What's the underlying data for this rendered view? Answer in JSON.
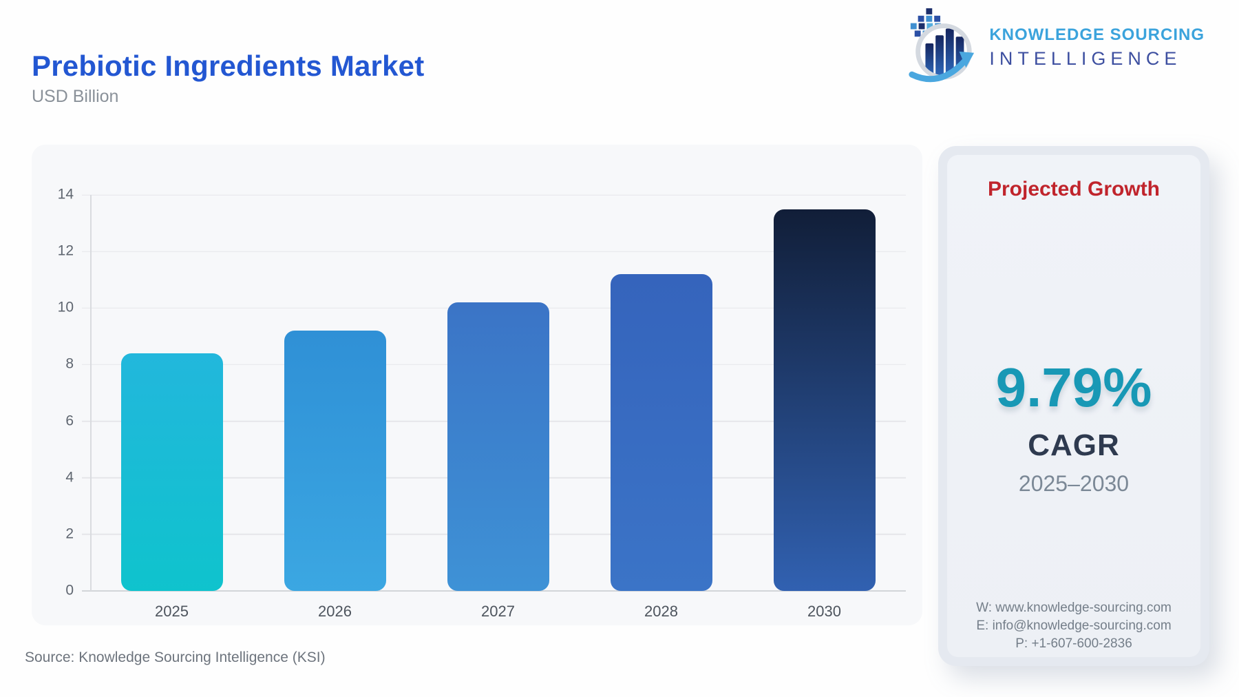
{
  "header": {
    "title": "Prebiotic Ingredients Market",
    "subtitle": "USD Billion",
    "logo": {
      "line1": "KNOWLEDGE SOURCING",
      "line2": "INTELLIGENCE"
    }
  },
  "colors": {
    "title-blue": "#2357D2",
    "accent-red": "#C0242C",
    "accent-teal": "#1898B5",
    "dark-navy": "#2E3A4F",
    "logo-light-blue": "#3BA3DC",
    "logo-dark-blue": "#3D4FA0"
  },
  "chart_data": {
    "type": "bar",
    "title": "Prebiotic Ingredients Market",
    "ylabel": "USD Billion",
    "xlabel": "",
    "categories": [
      "2025",
      "2026",
      "2027",
      "2028",
      "2030"
    ],
    "values": [
      8.4,
      9.2,
      10.2,
      11.2,
      13.5
    ],
    "ylim": [
      0,
      14
    ],
    "yticks": [
      0,
      2,
      4,
      6,
      8,
      10,
      12,
      14
    ],
    "grid": true,
    "legend": "none",
    "bar_colors": [
      {
        "top": "#22B7DC",
        "bottom": "#0FC3CD"
      },
      {
        "top": "#2F90D6",
        "bottom": "#3BA7E2"
      },
      {
        "top": "#3B74C6",
        "bottom": "#3E92D6"
      },
      {
        "top": "#3564BC",
        "bottom": "#3B74C7"
      },
      {
        "top": "#111E38",
        "bottom": "#3161B1"
      }
    ]
  },
  "growth_panel": {
    "heading": "Projected Growth",
    "cagr_value": "9.79%",
    "cagr_label": "CAGR",
    "period": "2025–2030",
    "contact": {
      "website": "W: www.knowledge-sourcing.com",
      "email": "E: info@knowledge-sourcing.com",
      "phone": "P: +1-607-600-2836"
    }
  },
  "footer": {
    "source": "Source: Knowledge Sourcing Intelligence (KSI)"
  }
}
